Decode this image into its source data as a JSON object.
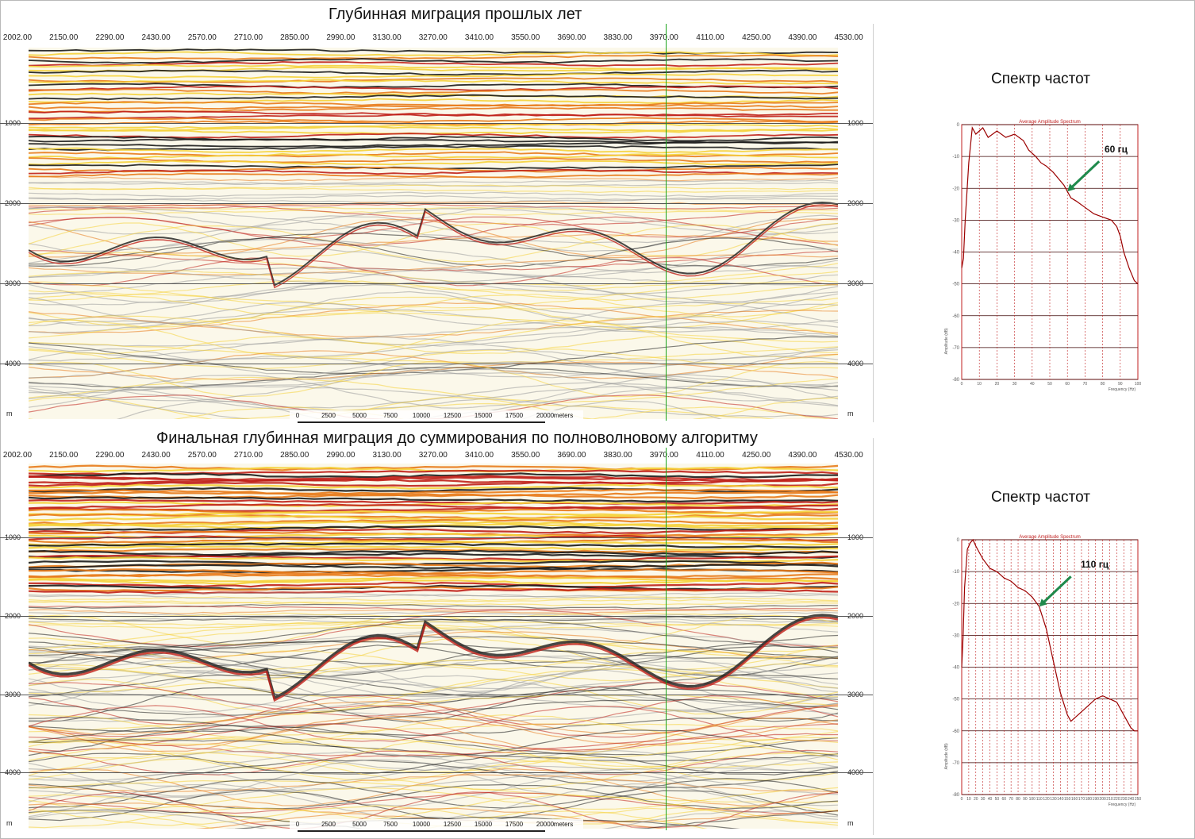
{
  "panels": [
    {
      "title": "Глубинная миграция прошлых лет",
      "x_ticks": [
        "2002.00",
        "2150.00",
        "2290.00",
        "2430.00",
        "2570.00",
        "2710.00",
        "2850.00",
        "2990.00",
        "3130.00",
        "3270.00",
        "3410.00",
        "3550.00",
        "3690.00",
        "3830.00",
        "3970.00",
        "4110.00",
        "4250.00",
        "4390.00",
        "4530.00"
      ],
      "depth_ticks": [
        "1000",
        "2000",
        "3000",
        "4000"
      ],
      "depth_unit": "m",
      "scale_ticks": [
        "0",
        "2500",
        "5000",
        "7500",
        "10000",
        "12500",
        "15000",
        "17500",
        "20000"
      ],
      "scale_unit": "meters",
      "spectrum_title": "Спектр частот",
      "spectrum_annotation": "60 гц",
      "spectrum_header": "Average Amplitude Spectrum"
    },
    {
      "title": "Финальная глубинная миграция до суммирования по полноволновому алгоритму",
      "x_ticks": [
        "2002.00",
        "2150.00",
        "2290.00",
        "2430.00",
        "2570.00",
        "2710.00",
        "2850.00",
        "2990.00",
        "3130.00",
        "3270.00",
        "3410.00",
        "3550.00",
        "3690.00",
        "3830.00",
        "3970.00",
        "4110.00",
        "4250.00",
        "4390.00",
        "4530.00"
      ],
      "depth_ticks": [
        "1000",
        "2000",
        "3000",
        "4000"
      ],
      "depth_unit": "m",
      "scale_ticks": [
        "0",
        "2500",
        "5000",
        "7500",
        "10000",
        "12500",
        "15000",
        "17500",
        "20000"
      ],
      "scale_unit": "meters",
      "spectrum_title": "Спектр частот",
      "spectrum_annotation": "110 гц",
      "spectrum_header": "Average Amplitude Spectrum"
    }
  ],
  "spectra": [
    {
      "y_ticks": [
        "0",
        "-10",
        "-20",
        "-30",
        "-40",
        "-50",
        "-60",
        "-70",
        "-80"
      ],
      "y_label": "Amplitude (dB)",
      "x_ticks": [
        "0",
        "10",
        "20",
        "30",
        "40",
        "50",
        "60",
        "70",
        "80",
        "90",
        "100"
      ],
      "x_label": "Frequency (Hz)",
      "x_max": 100,
      "y_min": -80,
      "curve_hz": [
        0,
        1,
        2,
        4,
        6,
        8,
        10,
        12,
        15,
        20,
        25,
        30,
        35,
        38,
        40,
        42,
        45,
        48,
        52,
        55,
        58,
        60,
        62,
        65,
        70,
        75,
        80,
        85,
        88,
        90,
        92,
        95,
        98,
        100
      ],
      "curve_db": [
        -45,
        -42,
        -30,
        -12,
        -1,
        -3,
        -2,
        -1,
        -4,
        -2,
        -4,
        -3,
        -5,
        -8,
        -9,
        -10,
        -12,
        -13,
        -15,
        -17,
        -19,
        -21,
        -23,
        -24,
        -26,
        -28,
        -29,
        -30,
        -32,
        -35,
        -40,
        -45,
        -49,
        -50
      ],
      "arrow_hz": 60,
      "colors": {
        "curve": "#9b0000",
        "grid": "#c02020",
        "arrow": "#1f8a4c"
      }
    },
    {
      "y_ticks": [
        "0",
        "-10",
        "-20",
        "-30",
        "-40",
        "-50",
        "-60",
        "-70",
        "-80"
      ],
      "y_label": "Amplitude (dB)",
      "x_ticks": [
        "0",
        "10",
        "20",
        "30",
        "40",
        "50",
        "60",
        "70",
        "80",
        "90",
        "100",
        "110",
        "120",
        "130",
        "140",
        "150",
        "160",
        "170",
        "180",
        "190",
        "200",
        "210",
        "220",
        "230",
        "240",
        "250"
      ],
      "x_label": "Frequency (Hz)",
      "x_max": 250,
      "y_min": -80,
      "curve_hz": [
        0,
        2,
        4,
        8,
        12,
        16,
        20,
        25,
        30,
        40,
        50,
        60,
        70,
        80,
        90,
        100,
        110,
        120,
        130,
        140,
        150,
        155,
        160,
        170,
        180,
        190,
        200,
        210,
        220,
        230,
        240,
        245,
        250
      ],
      "curve_db": [
        -40,
        -30,
        -15,
        -3,
        -1,
        0,
        -2,
        -4,
        -6,
        -9,
        -10,
        -12,
        -13,
        -15,
        -16,
        -18,
        -21,
        -28,
        -38,
        -48,
        -55,
        -57,
        -56,
        -54,
        -52,
        -50,
        -49,
        -50,
        -51,
        -55,
        -59,
        -60,
        -60
      ],
      "arrow_hz": 110,
      "colors": {
        "curve": "#9b0000",
        "grid": "#c02020",
        "arrow": "#1f8a4c"
      }
    }
  ],
  "colors": {
    "seismic_dark": "#1a1a1a",
    "seismic_red": "#c0201a",
    "seismic_orange": "#e87a1a",
    "seismic_yellow": "#f5d23a",
    "marker_line": "#1aa31a"
  }
}
